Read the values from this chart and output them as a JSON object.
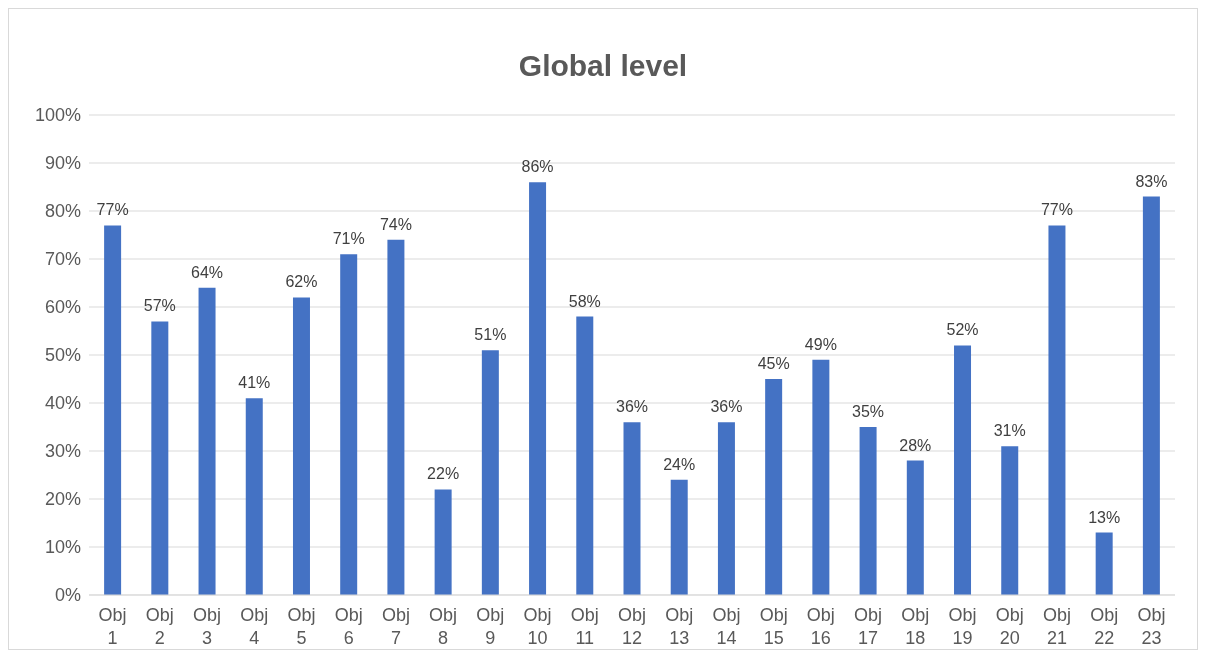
{
  "chart_data": {
    "type": "bar",
    "title": "Global level",
    "categories": [
      "Obj 1",
      "Obj 2",
      "Obj 3",
      "Obj 4",
      "Obj 5",
      "Obj 6",
      "Obj 7",
      "Obj 8",
      "Obj 9",
      "Obj 10",
      "Obj 11",
      "Obj 12",
      "Obj 13",
      "Obj 14",
      "Obj 15",
      "Obj 16",
      "Obj 17",
      "Obj 18",
      "Obj 19",
      "Obj 20",
      "Obj 21",
      "Obj 22",
      "Obj 23"
    ],
    "values": [
      77,
      57,
      64,
      41,
      62,
      71,
      74,
      22,
      51,
      86,
      58,
      36,
      24,
      36,
      45,
      49,
      35,
      28,
      52,
      31,
      77,
      13,
      83
    ],
    "value_labels": [
      "77%",
      "57%",
      "64%",
      "41%",
      "62%",
      "71%",
      "74%",
      "22%",
      "51%",
      "86%",
      "58%",
      "36%",
      "24%",
      "36%",
      "45%",
      "49%",
      "35%",
      "28%",
      "52%",
      "31%",
      "77%",
      "13%",
      "83%"
    ],
    "color": "#4472c4",
    "ylim": [
      0,
      100
    ],
    "yticks": [
      {
        "value": 0,
        "label": "0%"
      },
      {
        "value": 10,
        "label": "10%"
      },
      {
        "value": 20,
        "label": "20%"
      },
      {
        "value": 30,
        "label": "30%"
      },
      {
        "value": 40,
        "label": "40%"
      },
      {
        "value": 50,
        "label": "50%"
      },
      {
        "value": 60,
        "label": "60%"
      },
      {
        "value": 70,
        "label": "70%"
      },
      {
        "value": 80,
        "label": "80%"
      },
      {
        "value": 90,
        "label": "90%"
      },
      {
        "value": 100,
        "label": "100%"
      }
    ],
    "grid": "y"
  }
}
